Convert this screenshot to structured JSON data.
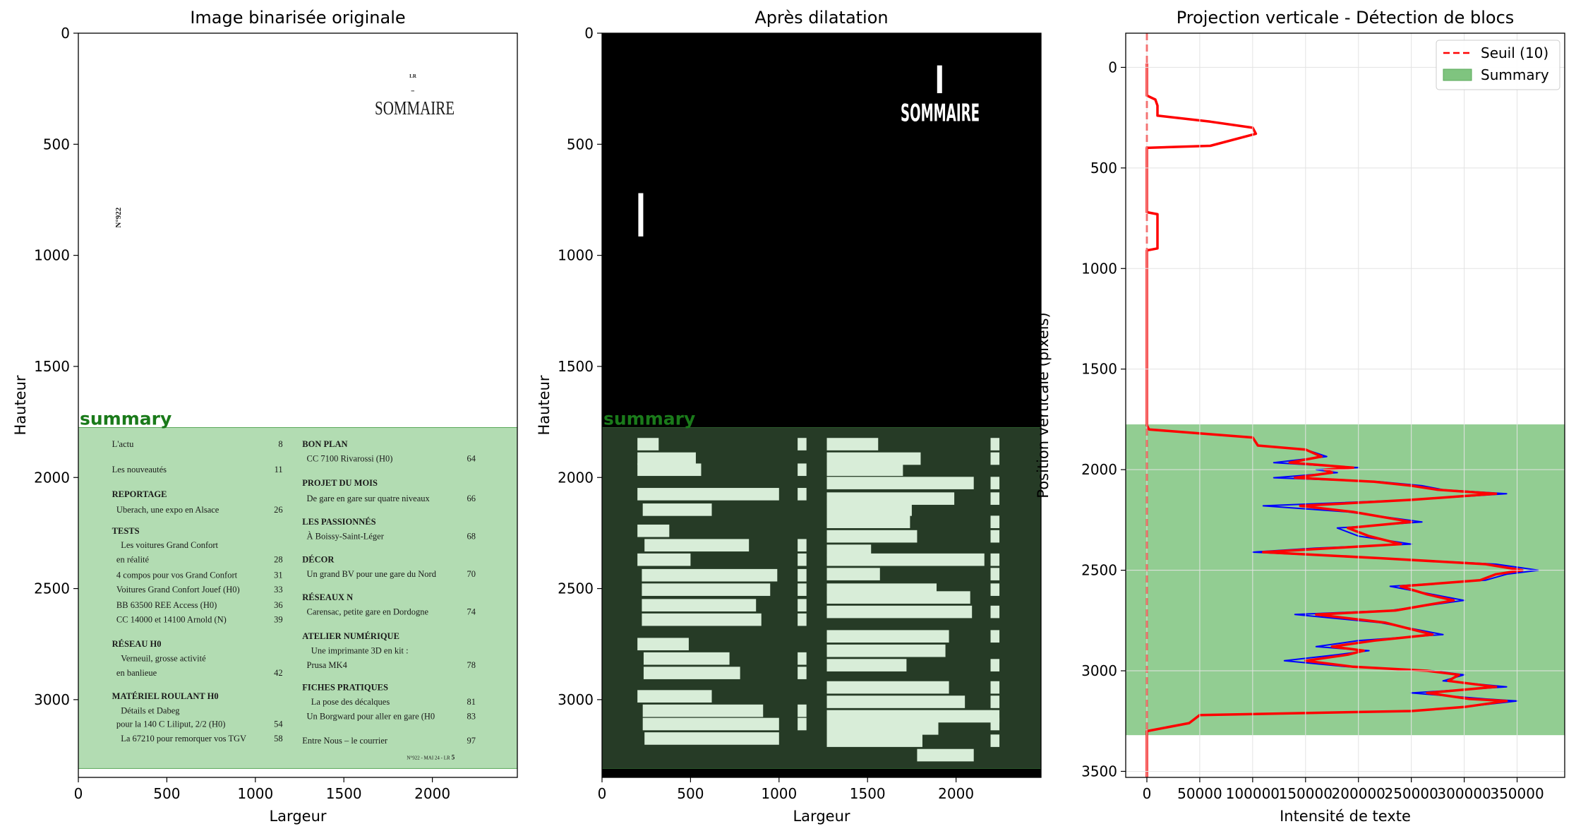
{
  "chart_data": [
    {
      "type": "image",
      "title": "Image binarisée originale",
      "xlabel": "Largeur",
      "ylabel": "Hauteur",
      "xlim": [
        0,
        2480
      ],
      "ylim": [
        3350,
        0
      ],
      "xticks": [
        0,
        500,
        1000,
        1500,
        2000
      ],
      "yticks": [
        0,
        500,
        1000,
        1500,
        2000,
        2500,
        3000
      ],
      "region": {
        "label": "summary",
        "y_start": 1775,
        "y_end": 3310,
        "color": "#7fc47f"
      },
      "page_text": {
        "logo": "LR",
        "heading": "SOMMAIRE",
        "issue": "N°922",
        "footer": "N°922 - MAI 24 - LR",
        "footer_page": "5",
        "left_column": [
          {
            "text": "L'actu",
            "page": "8",
            "bold": false
          },
          {
            "text": "Les nouveautés",
            "page": "11",
            "bold": false
          },
          {
            "text": "REPORTAGE",
            "page": "",
            "bold": true
          },
          {
            "text": "Uberach, une expo en Alsace",
            "page": "26",
            "bold": false
          },
          {
            "text": "TESTS",
            "page": "",
            "bold": true
          },
          {
            "text": "Les voitures Grand Confort",
            "page": "",
            "bold": false
          },
          {
            "text": "en réalité",
            "page": "28",
            "bold": false
          },
          {
            "text": "4 compos pour vos Grand Confort",
            "page": "31",
            "bold": false
          },
          {
            "text": "Voitures Grand Confort Jouef (H0)",
            "page": "33",
            "bold": false
          },
          {
            "text": "BB 63500 REE Access (H0)",
            "page": "36",
            "bold": false
          },
          {
            "text": "CC 14000 et 14100 Arnold (N)",
            "page": "39",
            "bold": false
          },
          {
            "text": "RÉSEAU H0",
            "page": "",
            "bold": true
          },
          {
            "text": "Verneuil, grosse activité",
            "page": "",
            "bold": false
          },
          {
            "text": "en banlieue",
            "page": "42",
            "bold": false
          },
          {
            "text": "MATÉRIEL ROULANT H0",
            "page": "",
            "bold": true
          },
          {
            "text": "Détails et Dabeg",
            "page": "",
            "bold": false
          },
          {
            "text": "pour la 140 C Liliput, 2/2 (H0)",
            "page": "54",
            "bold": false
          },
          {
            "text": "La 67210 pour remorquer vos TGV",
            "page": "58",
            "bold": false
          }
        ],
        "right_column": [
          {
            "text": "BON PLAN",
            "page": "",
            "bold": true
          },
          {
            "text": "CC 7100 Rivarossi (H0)",
            "page": "64",
            "bold": false
          },
          {
            "text": "PROJET DU MOIS",
            "page": "",
            "bold": true
          },
          {
            "text": "De gare en gare sur quatre niveaux",
            "page": "66",
            "bold": false
          },
          {
            "text": "LES PASSIONNÉS",
            "page": "",
            "bold": true
          },
          {
            "text": "À Boissy-Saint-Léger",
            "page": "68",
            "bold": false
          },
          {
            "text": "DÉCOR",
            "page": "",
            "bold": true
          },
          {
            "text": "Un grand BV pour une gare du Nord",
            "page": "70",
            "bold": false
          },
          {
            "text": "RÉSEAUX N",
            "page": "",
            "bold": true
          },
          {
            "text": "Carensac, petite gare en Dordogne",
            "page": "74",
            "bold": false
          },
          {
            "text": "ATELIER NUMÉRIQUE",
            "page": "",
            "bold": true
          },
          {
            "text": "Une imprimante 3D en kit :",
            "page": "",
            "bold": false
          },
          {
            "text": "Prusa MK4",
            "page": "78",
            "bold": false
          },
          {
            "text": "FICHES PRATIQUES",
            "page": "",
            "bold": true
          },
          {
            "text": "La pose des décalques",
            "page": "81",
            "bold": false
          },
          {
            "text": "Un Borgward pour aller en gare (H0",
            "page": "83",
            "bold": false
          },
          {
            "text": "Entre Nous – le courrier",
            "page": "97",
            "bold": false
          }
        ]
      }
    },
    {
      "type": "image",
      "title": "Après dilatation",
      "xlabel": "Largeur",
      "ylabel": "Hauteur",
      "xlim": [
        0,
        2480
      ],
      "ylim": [
        3350,
        0
      ],
      "xticks": [
        0,
        500,
        1000,
        1500,
        2000
      ],
      "yticks": [
        0,
        500,
        1000,
        1500,
        2000,
        2500,
        3000
      ],
      "region": {
        "label": "summary",
        "y_start": 1775,
        "y_end": 3310,
        "color": "#7fc47f"
      },
      "heading": "SOMMAIRE"
    },
    {
      "type": "line",
      "title": "Projection verticale - Détection de blocs",
      "xlabel": "Intensité de texte",
      "ylabel": "Position verticale (pixels)",
      "xlim": [
        -20000,
        395000
      ],
      "ylim": [
        3530,
        -170
      ],
      "xticks": [
        0,
        50000,
        100000,
        150000,
        200000,
        250000,
        300000,
        350000
      ],
      "yticks": [
        0,
        500,
        1000,
        1500,
        2000,
        2500,
        3000,
        3500
      ],
      "grid": true,
      "legend_position": "top-right",
      "threshold": {
        "name": "Seuil (10)",
        "value": 10,
        "color": "#ff0000"
      },
      "region": {
        "name": "Summary",
        "y_start": 1775,
        "y_end": 3320,
        "color": "#7fc47f"
      },
      "series": [
        {
          "color": "#0000ff",
          "x": [
            0,
            0,
            8000,
            10000,
            10000,
            60000,
            100000,
            103000,
            60000,
            0,
            0,
            0,
            10000,
            10000,
            0,
            0,
            0,
            0,
            2000,
            100000,
            105000,
            150000,
            170000,
            120000,
            200000,
            160000,
            180000,
            120000,
            220000,
            260000,
            280000,
            340000,
            250000,
            110000,
            190000,
            260000,
            180000,
            200000,
            250000,
            160000,
            100000,
            220000,
            330000,
            370000,
            340000,
            320000,
            230000,
            270000,
            300000,
            230000,
            140000,
            220000,
            260000,
            280000,
            200000,
            160000,
            210000,
            180000,
            130000,
            190000,
            270000,
            300000,
            280000,
            340000,
            250000,
            320000,
            350000,
            300000,
            250000,
            50000,
            40000,
            0,
            0
          ],
          "y": [
            -20,
            140,
            160,
            190,
            240,
            270,
            300,
            330,
            390,
            400,
            600,
            720,
            730,
            900,
            910,
            1500,
            1770,
            1780,
            1800,
            1840,
            1880,
            1900,
            1935,
            1965,
            1990,
            2000,
            2015,
            2040,
            2060,
            2080,
            2100,
            2120,
            2150,
            2180,
            2210,
            2260,
            2290,
            2330,
            2370,
            2390,
            2410,
            2440,
            2470,
            2500,
            2520,
            2550,
            2580,
            2620,
            2650,
            2700,
            2720,
            2760,
            2800,
            2820,
            2850,
            2880,
            2900,
            2920,
            2950,
            2980,
            3000,
            3020,
            3050,
            3080,
            3110,
            3140,
            3150,
            3180,
            3200,
            3220,
            3260,
            3300,
            3530
          ]
        },
        {
          "color": "#ff0000",
          "x": [
            0,
            0,
            8000,
            10000,
            10000,
            60000,
            100000,
            103000,
            60000,
            0,
            0,
            0,
            10000,
            10000,
            0,
            0,
            0,
            0,
            2000,
            100000,
            105000,
            150000,
            165000,
            135000,
            195000,
            168000,
            175000,
            140000,
            215000,
            250000,
            275000,
            330000,
            250000,
            145000,
            195000,
            250000,
            190000,
            210000,
            240000,
            175000,
            110000,
            220000,
            320000,
            355000,
            330000,
            315000,
            240000,
            265000,
            290000,
            235000,
            160000,
            225000,
            255000,
            270000,
            215000,
            175000,
            205000,
            190000,
            150000,
            195000,
            265000,
            295000,
            285000,
            330000,
            265000,
            305000,
            340000,
            300000,
            250000,
            50000,
            40000,
            0,
            0
          ],
          "y": [
            -20,
            140,
            160,
            190,
            240,
            270,
            300,
            330,
            390,
            400,
            600,
            720,
            730,
            900,
            910,
            1500,
            1770,
            1780,
            1800,
            1840,
            1880,
            1900,
            1935,
            1965,
            1990,
            2000,
            2015,
            2040,
            2060,
            2080,
            2100,
            2120,
            2150,
            2180,
            2210,
            2260,
            2290,
            2330,
            2370,
            2390,
            2410,
            2440,
            2470,
            2500,
            2520,
            2550,
            2580,
            2620,
            2650,
            2700,
            2720,
            2760,
            2800,
            2820,
            2850,
            2880,
            2900,
            2920,
            2950,
            2980,
            3000,
            3020,
            3050,
            3080,
            3110,
            3140,
            3150,
            3180,
            3200,
            3220,
            3260,
            3300,
            3530
          ]
        }
      ]
    }
  ]
}
